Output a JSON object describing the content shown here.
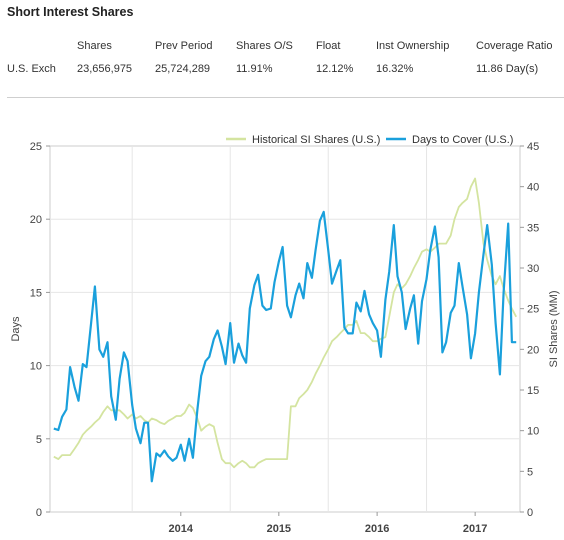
{
  "section": {
    "title": "Short Interest Shares"
  },
  "stats": {
    "headers": [
      "Shares",
      "Prev Period",
      "Shares O/S",
      "Float",
      "Inst Ownership",
      "Coverage Ratio"
    ],
    "row_label": "U.S. Exch",
    "values": [
      "23,656,975",
      "25,724,289",
      "11.91%",
      "12.12%",
      "16.32%",
      "11.86 Day(s)"
    ]
  },
  "chart_data": {
    "type": "line",
    "title": "",
    "ylabel": "Days",
    "y2label": "SI Shares (MM)",
    "ylim": [
      0,
      25
    ],
    "y2lim": [
      0,
      45
    ],
    "yticks": [
      "0",
      "5",
      "10",
      "15",
      "20",
      "25"
    ],
    "y2ticks": [
      "0",
      "5",
      "10",
      "15",
      "20",
      "25",
      "30",
      "35",
      "40",
      "45"
    ],
    "xticks": [
      "2014",
      "2015",
      "2016",
      "2017"
    ],
    "x_range": [
      "2013-03-01",
      "2017-12-15"
    ],
    "grid": true,
    "legend_position": "top-right",
    "colors": {
      "si": "#d4e4a0",
      "days": "#1aa0dc"
    },
    "series": [
      {
        "name": "Historical SI Shares (U.S.)",
        "axis": "right",
        "x": [
          "2013-03-15",
          "2013-04-01",
          "2013-04-15",
          "2013-05-01",
          "2013-05-15",
          "2013-06-01",
          "2013-06-15",
          "2013-07-01",
          "2013-07-15",
          "2013-08-01",
          "2013-08-15",
          "2013-09-01",
          "2013-09-15",
          "2013-10-01",
          "2013-10-15",
          "2013-11-01",
          "2013-11-15",
          "2013-12-01",
          "2013-12-15",
          "2014-01-01",
          "2014-01-15",
          "2014-02-01",
          "2014-02-15",
          "2014-03-01",
          "2014-03-15",
          "2014-04-01",
          "2014-04-15",
          "2014-05-01",
          "2014-05-15",
          "2014-06-01",
          "2014-06-15",
          "2014-07-01",
          "2014-07-15",
          "2014-08-01",
          "2014-08-15",
          "2014-09-01",
          "2014-09-15",
          "2014-10-01",
          "2014-10-15",
          "2014-11-01",
          "2014-11-15",
          "2014-12-01",
          "2014-12-15",
          "2015-01-01",
          "2015-01-15",
          "2015-02-01",
          "2015-02-15",
          "2015-03-01",
          "2015-03-15",
          "2015-04-01",
          "2015-04-15",
          "2015-05-01",
          "2015-05-15",
          "2015-06-01",
          "2015-06-15",
          "2015-07-01",
          "2015-07-15",
          "2015-08-01",
          "2015-08-15",
          "2015-09-01",
          "2015-09-15",
          "2015-10-01",
          "2015-10-15",
          "2015-11-01",
          "2015-11-15",
          "2015-12-01",
          "2015-12-15",
          "2016-01-01",
          "2016-01-15",
          "2016-02-01",
          "2016-02-15",
          "2016-03-01",
          "2016-03-15",
          "2016-04-01",
          "2016-04-15",
          "2016-05-01",
          "2016-05-15",
          "2016-06-01",
          "2016-06-15",
          "2016-07-01",
          "2016-07-15",
          "2016-08-01",
          "2016-08-15",
          "2016-09-01",
          "2016-09-15",
          "2016-10-01",
          "2016-10-15",
          "2016-11-01",
          "2016-11-15",
          "2016-12-01",
          "2016-12-15",
          "2017-01-01",
          "2017-01-15",
          "2017-02-01",
          "2017-02-15",
          "2017-03-01",
          "2017-03-15",
          "2017-04-01",
          "2017-04-15",
          "2017-05-01",
          "2017-05-15",
          "2017-06-01",
          "2017-06-15",
          "2017-07-01",
          "2017-07-15",
          "2017-08-01",
          "2017-08-15",
          "2017-09-01",
          "2017-09-15",
          "2017-10-01",
          "2017-10-15",
          "2017-11-01",
          "2017-11-15",
          "2017-12-01"
        ],
        "values": [
          6.8,
          6.5,
          7.0,
          7.0,
          7.0,
          7.8,
          8.5,
          9.5,
          10.0,
          10.5,
          11.0,
          11.5,
          12.3,
          13.0,
          12.5,
          12.5,
          12.5,
          12.0,
          11.5,
          12.0,
          11.5,
          11.8,
          11.3,
          11.0,
          11.5,
          11.3,
          11.0,
          10.8,
          11.2,
          11.5,
          11.8,
          11.8,
          12.2,
          13.2,
          12.8,
          11.5,
          10.0,
          10.5,
          10.8,
          10.5,
          8.5,
          6.5,
          6.0,
          6.0,
          5.5,
          6.0,
          6.3,
          6.0,
          5.5,
          5.5,
          6.0,
          6.3,
          6.5,
          6.5,
          6.5,
          6.5,
          6.5,
          6.5,
          13.0,
          13.0,
          14.0,
          14.5,
          15.0,
          16.0,
          17.0,
          18.0,
          19.0,
          20.0,
          21.0,
          21.5,
          22.0,
          22.5,
          23.0,
          23.0,
          23.5,
          22.0,
          22.0,
          21.5,
          21.0,
          21.0,
          21.3,
          21.5,
          24.0,
          27.0,
          28.0,
          27.5,
          28.0,
          29.0,
          30.0,
          31.0,
          32.0,
          32.3,
          32.0,
          32.5,
          33.0,
          33.0,
          33.0,
          34.0,
          36.0,
          37.5,
          38.0,
          38.5,
          40.0,
          41.0,
          38.0,
          33.0,
          31.0,
          29.0,
          28.0,
          29.0,
          27.5,
          26.0,
          25.0,
          24.0
        ]
      },
      {
        "name": "Days to Cover  (U.S.)",
        "axis": "left",
        "x": [
          "2013-03-15",
          "2013-04-01",
          "2013-04-15",
          "2013-05-01",
          "2013-05-15",
          "2013-06-01",
          "2013-06-15",
          "2013-07-01",
          "2013-07-15",
          "2013-08-01",
          "2013-08-15",
          "2013-09-01",
          "2013-09-15",
          "2013-10-01",
          "2013-10-15",
          "2013-11-01",
          "2013-11-15",
          "2013-12-01",
          "2013-12-15",
          "2014-01-01",
          "2014-01-15",
          "2014-02-01",
          "2014-02-15",
          "2014-03-01",
          "2014-03-15",
          "2014-04-01",
          "2014-04-15",
          "2014-05-01",
          "2014-05-15",
          "2014-06-01",
          "2014-06-15",
          "2014-07-01",
          "2014-07-15",
          "2014-08-01",
          "2014-08-15",
          "2014-09-01",
          "2014-09-15",
          "2014-10-01",
          "2014-10-15",
          "2014-11-01",
          "2014-11-15",
          "2014-12-01",
          "2014-12-15",
          "2015-01-01",
          "2015-01-15",
          "2015-02-01",
          "2015-02-15",
          "2015-03-01",
          "2015-03-15",
          "2015-04-01",
          "2015-04-15",
          "2015-05-01",
          "2015-05-15",
          "2015-06-01",
          "2015-06-15",
          "2015-07-01",
          "2015-07-15",
          "2015-08-01",
          "2015-08-15",
          "2015-09-01",
          "2015-09-15",
          "2015-10-01",
          "2015-10-15",
          "2015-11-01",
          "2015-11-15",
          "2015-12-01",
          "2015-12-15",
          "2016-01-01",
          "2016-01-15",
          "2016-02-01",
          "2016-02-15",
          "2016-03-01",
          "2016-03-15",
          "2016-04-01",
          "2016-04-15",
          "2016-05-01",
          "2016-05-15",
          "2016-06-01",
          "2016-06-15",
          "2016-07-01",
          "2016-07-15",
          "2016-08-01",
          "2016-08-15",
          "2016-09-01",
          "2016-09-15",
          "2016-10-01",
          "2016-10-15",
          "2016-11-01",
          "2016-11-15",
          "2016-12-01",
          "2016-12-15",
          "2017-01-01",
          "2017-01-15",
          "2017-02-01",
          "2017-02-15",
          "2017-03-01",
          "2017-03-15",
          "2017-04-01",
          "2017-04-15",
          "2017-05-01",
          "2017-05-15",
          "2017-06-01",
          "2017-06-15",
          "2017-07-01",
          "2017-07-15",
          "2017-08-01",
          "2017-08-15",
          "2017-09-01",
          "2017-09-15",
          "2017-10-01",
          "2017-10-15",
          "2017-11-01",
          "2017-11-15",
          "2017-12-01"
        ],
        "values": [
          5.7,
          5.6,
          6.5,
          7.0,
          9.9,
          8.5,
          7.6,
          10.1,
          9.9,
          12.9,
          15.4,
          11.1,
          10.6,
          11.6,
          7.9,
          6.3,
          9.1,
          10.9,
          10.3,
          7.3,
          5.7,
          4.7,
          6.1,
          6.1,
          2.1,
          4.0,
          3.8,
          4.2,
          3.8,
          3.5,
          3.7,
          4.6,
          3.5,
          5.0,
          3.7,
          7.0,
          9.3,
          10.3,
          10.6,
          11.8,
          12.4,
          11.3,
          10.1,
          12.9,
          10.2,
          11.5,
          10.7,
          10.2,
          13.9,
          15.5,
          16.2,
          14.1,
          13.8,
          13.9,
          15.7,
          17.1,
          18.1,
          14.1,
          13.3,
          14.8,
          15.6,
          14.6,
          17.0,
          16.0,
          17.9,
          19.9,
          20.5,
          17.9,
          15.6,
          16.5,
          17.2,
          12.6,
          12.2,
          12.2,
          14.3,
          13.7,
          15.1,
          13.5,
          12.9,
          12.4,
          10.6,
          14.5,
          16.4,
          19.6,
          16.1,
          15.0,
          12.5,
          13.9,
          14.8,
          11.5,
          14.4,
          15.9,
          17.9,
          19.5,
          17.4,
          10.9,
          11.6,
          13.6,
          14.1,
          17.0,
          15.4,
          13.5,
          10.5,
          12.2,
          15.0,
          17.6,
          19.6,
          16.9,
          12.9,
          9.4,
          15.0,
          19.7,
          11.6,
          11.6
        ]
      }
    ]
  }
}
